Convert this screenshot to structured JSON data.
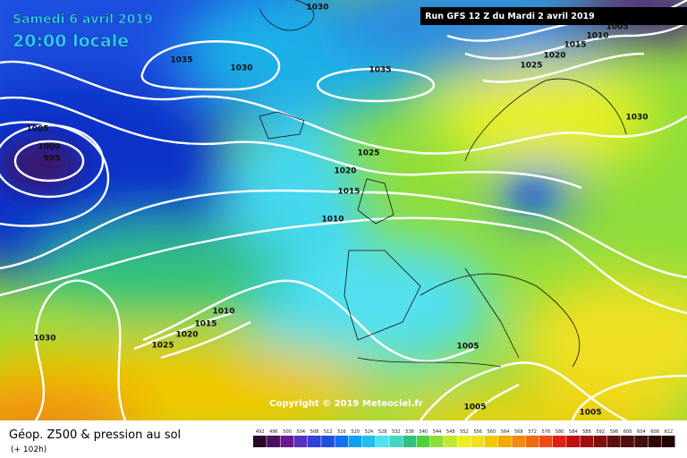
{
  "header": {
    "date": "Samedi 6 avril 2019",
    "time": "20:00 locale",
    "run": "Run GFS 12 Z du Mardi 2 avril 2019"
  },
  "isobar_labels": [
    "1030",
    "1035",
    "1030",
    "1035",
    "1005",
    "1000",
    "995",
    "1025",
    "1020",
    "1015",
    "1010",
    "1010",
    "1015",
    "1020",
    "1025",
    "1030",
    "1005",
    "1005",
    "1005",
    "1030",
    "1025",
    "1020",
    "1015",
    "1010",
    "1005"
  ],
  "copyright": "Copyright © 2019 Meteociel.fr",
  "footer": {
    "title": "Géop. Z500 & pression au sol",
    "lead": "(+ 102h)"
  },
  "scale": {
    "values": [
      492,
      496,
      500,
      504,
      508,
      512,
      516,
      520,
      524,
      528,
      532,
      536,
      540,
      544,
      548,
      552,
      556,
      560,
      564,
      568,
      572,
      576,
      580,
      584,
      588,
      592,
      596,
      600,
      604,
      608,
      612
    ]
  }
}
